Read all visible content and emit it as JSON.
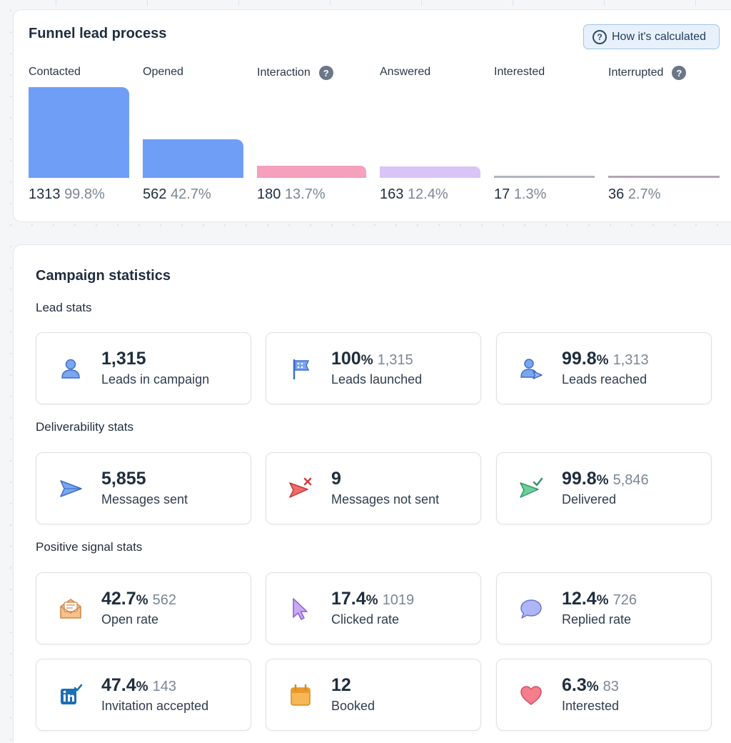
{
  "funnel": {
    "title": "Funnel lead process",
    "calc_button": "How it's calculated",
    "stages": [
      {
        "label": "Contacted",
        "count": "1313",
        "percent": "99.8%",
        "help": false,
        "color": "#6f9ef6"
      },
      {
        "label": "Opened",
        "count": "562",
        "percent": "42.7%",
        "help": false,
        "color": "#6f9ef6"
      },
      {
        "label": "Interaction",
        "count": "180",
        "percent": "13.7%",
        "help": true,
        "color": "#f5a0bd"
      },
      {
        "label": "Answered",
        "count": "163",
        "percent": "12.4%",
        "help": false,
        "color": "#d9c4f8"
      },
      {
        "label": "Interested",
        "count": "17",
        "percent": "1.3%",
        "help": false,
        "color": "#b1b4bc"
      },
      {
        "label": "Interrupted",
        "count": "36",
        "percent": "2.7%",
        "help": true,
        "color": "#b3a6b5"
      }
    ]
  },
  "campaign": {
    "title": "Campaign statistics",
    "sections": [
      {
        "title": "Lead stats",
        "cards": [
          {
            "icon": "user-icon",
            "value": "1,315",
            "unit": "",
            "sub": "",
            "label": "Leads in campaign"
          },
          {
            "icon": "flag-icon",
            "value": "100",
            "unit": "%",
            "sub": "1,315",
            "label": "Leads launched"
          },
          {
            "icon": "user-send-icon",
            "value": "99.8",
            "unit": "%",
            "sub": "1,313",
            "label": "Leads reached"
          }
        ]
      },
      {
        "title": "Deliverability stats",
        "cards": [
          {
            "icon": "send-icon",
            "value": "5,855",
            "unit": "",
            "sub": "",
            "label": "Messages sent"
          },
          {
            "icon": "send-failed-icon",
            "value": "9",
            "unit": "",
            "sub": "",
            "label": "Messages not sent"
          },
          {
            "icon": "send-delivered-icon",
            "value": "99.8",
            "unit": "%",
            "sub": "5,846",
            "label": "Delivered"
          }
        ]
      },
      {
        "title": "Positive signal stats",
        "cards": [
          {
            "icon": "open-envelope-icon",
            "value": "42.7",
            "unit": "%",
            "sub": "562",
            "label": "Open rate"
          },
          {
            "icon": "cursor-icon",
            "value": "17.4",
            "unit": "%",
            "sub": "1019",
            "label": "Clicked rate"
          },
          {
            "icon": "chat-bubble-icon",
            "value": "12.4",
            "unit": "%",
            "sub": "726",
            "label": "Replied rate"
          },
          {
            "icon": "linkedin-icon",
            "value": "47.4",
            "unit": "%",
            "sub": "143",
            "label": "Invitation accepted"
          },
          {
            "icon": "calendar-icon",
            "value": "12",
            "unit": "",
            "sub": "",
            "label": "Booked"
          },
          {
            "icon": "heart-icon",
            "value": "6.3",
            "unit": "%",
            "sub": "83",
            "label": "Interested"
          }
        ]
      }
    ]
  }
}
